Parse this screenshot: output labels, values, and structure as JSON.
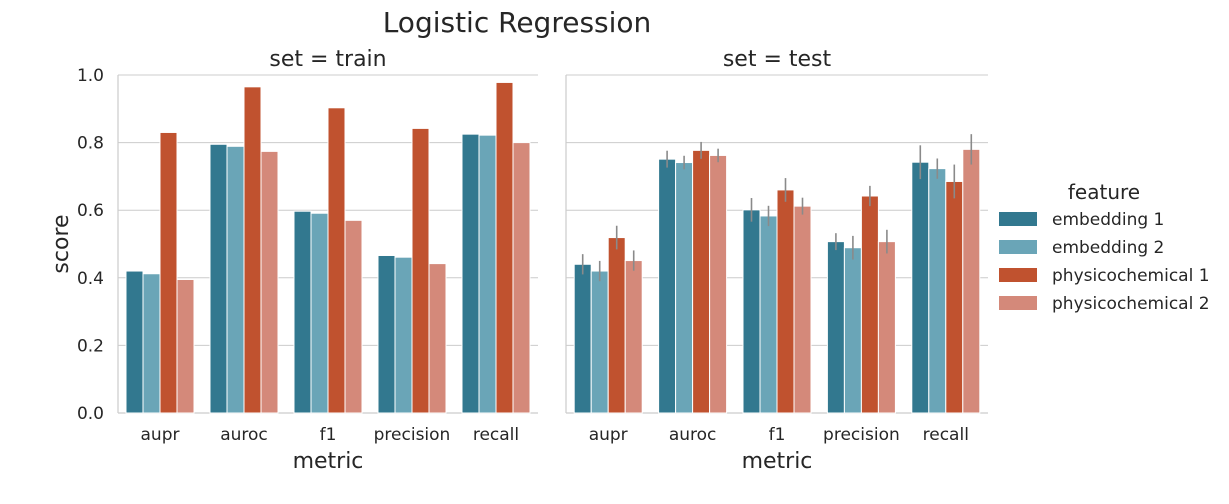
{
  "figure_title": "Logistic Regression",
  "colors": {
    "embedding 1": "#32788f",
    "embedding 2": "#6aa5b7",
    "physicochemical 1": "#c0522f",
    "physicochemical 2": "#d4897a",
    "grid": "#cccccc",
    "errorbar": "#8a8a8a"
  },
  "legend": {
    "title": "feature",
    "position": "right"
  },
  "chart_data": [
    {
      "type": "bar",
      "title": "set = train",
      "xlabel": "metric",
      "ylabel": "score",
      "ylim": [
        0,
        1.0
      ],
      "yticks": [
        "0.0",
        "0.2",
        "0.4",
        "0.6",
        "0.8",
        "1.0"
      ],
      "grid": true,
      "categories": [
        "aupr",
        "auroc",
        "f1",
        "precision",
        "recall"
      ],
      "series": [
        {
          "name": "embedding 1",
          "values": [
            0.42,
            0.795,
            0.597,
            0.466,
            0.825
          ]
        },
        {
          "name": "embedding 2",
          "values": [
            0.412,
            0.789,
            0.591,
            0.461,
            0.822
          ]
        },
        {
          "name": "physicochemical 1",
          "values": [
            0.83,
            0.965,
            0.903,
            0.842,
            0.978
          ]
        },
        {
          "name": "physicochemical 2",
          "values": [
            0.395,
            0.774,
            0.57,
            0.442,
            0.8
          ]
        }
      ]
    },
    {
      "type": "bar",
      "title": "set = test",
      "xlabel": "metric",
      "ylabel": "",
      "ylim": [
        0,
        1.0
      ],
      "grid": true,
      "categories": [
        "aupr",
        "auroc",
        "f1",
        "precision",
        "recall"
      ],
      "series": [
        {
          "name": "embedding 1",
          "values": [
            0.44,
            0.751,
            0.601,
            0.507,
            0.742
          ],
          "err": [
            0.03,
            0.025,
            0.035,
            0.025,
            0.05
          ]
        },
        {
          "name": "embedding 2",
          "values": [
            0.42,
            0.741,
            0.583,
            0.489,
            0.723
          ],
          "err": [
            0.03,
            0.02,
            0.03,
            0.035,
            0.03
          ]
        },
        {
          "name": "physicochemical 1",
          "values": [
            0.519,
            0.777,
            0.66,
            0.642,
            0.685
          ],
          "err": [
            0.035,
            0.025,
            0.035,
            0.03,
            0.05
          ]
        },
        {
          "name": "physicochemical 2",
          "values": [
            0.451,
            0.762,
            0.612,
            0.507,
            0.78
          ],
          "err": [
            0.03,
            0.02,
            0.025,
            0.035,
            0.045
          ]
        }
      ]
    }
  ]
}
